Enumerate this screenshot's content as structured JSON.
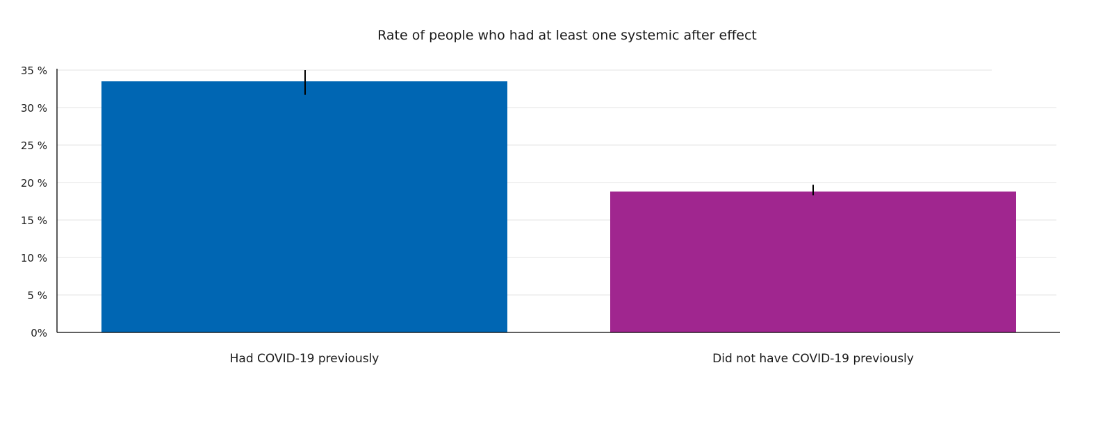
{
  "chart_data": {
    "type": "bar",
    "title": "Rate of people who had at least one systemic after effect",
    "xlabel": "",
    "ylabel": "",
    "ylim": [
      0,
      35
    ],
    "grid": true,
    "legend": "none",
    "yticks": [
      {
        "value": 0,
        "label": "0%"
      },
      {
        "value": 5,
        "label": "5 %"
      },
      {
        "value": 10,
        "label": "10 %"
      },
      {
        "value": 15,
        "label": "15 %"
      },
      {
        "value": 20,
        "label": "20 %"
      },
      {
        "value": 25,
        "label": "25 %"
      },
      {
        "value": 30,
        "label": "30 %"
      },
      {
        "value": 35,
        "label": "35 %"
      }
    ],
    "categories": [
      "Had COVID-19 previously",
      "Did not have COVID-19 previously"
    ],
    "values": [
      33.5,
      18.8
    ],
    "error_low": [
      31.7,
      18.3
    ],
    "error_high": [
      35.0,
      19.7
    ],
    "colors": [
      "#0066b3",
      "#a0268f"
    ]
  }
}
